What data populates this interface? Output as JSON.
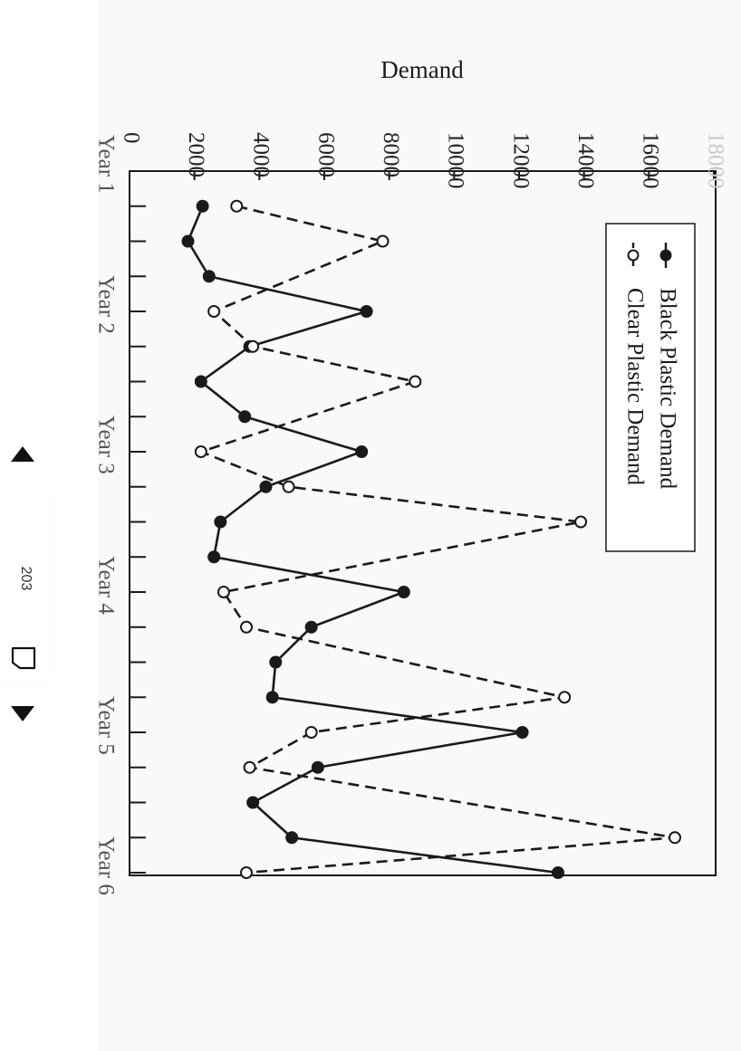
{
  "viewer": {
    "page_number": "203"
  },
  "chart_data": {
    "type": "line",
    "ylabel": "Demand",
    "ylim": [
      0,
      18000
    ],
    "y_ticks": [
      "0",
      "2000",
      "4000",
      "6000",
      "8000",
      "10000",
      "12000",
      "14000",
      "16000",
      "18000"
    ],
    "x_tick_labels": [
      "Year 1",
      "Year 2",
      "Year 3",
      "Year 4",
      "Year 5",
      "Year 6"
    ],
    "legend_position": "top-right",
    "series": [
      {
        "name": "Black Plastic Demand",
        "marker": "filled",
        "line": "solid",
        "color": "#1a1a1a",
        "values": [
          2250,
          1800,
          2450,
          7300,
          3700,
          2200,
          3550,
          7150,
          4200,
          2800,
          2600,
          8450,
          5600,
          4500,
          4400,
          12100,
          5800,
          3800,
          5000,
          13200
        ]
      },
      {
        "name": "Clear Plastic Demand",
        "marker": "open",
        "line": "dashed",
        "color": "#1a1a1a",
        "values": [
          3300,
          7800,
          2600,
          3800,
          8800,
          2200,
          4900,
          13900,
          2900,
          3600,
          13400,
          5600,
          3700,
          16800,
          3600
        ]
      }
    ],
    "x_positions": {
      "Black Plastic Demand": [
        0.25,
        0.5,
        0.75,
        1.0,
        1.25,
        1.5,
        1.75,
        2.0,
        2.25,
        2.5,
        2.75,
        3.0,
        3.25,
        3.5,
        3.75,
        4.0,
        4.25,
        4.5,
        4.75,
        5.0
      ],
      "Clear Plastic Demand": [
        0.25,
        0.5,
        1.0,
        1.25,
        1.5,
        2.0,
        2.25,
        2.5,
        3.0,
        3.25,
        3.75,
        4.0,
        4.25,
        4.75,
        5.0
      ]
    }
  }
}
